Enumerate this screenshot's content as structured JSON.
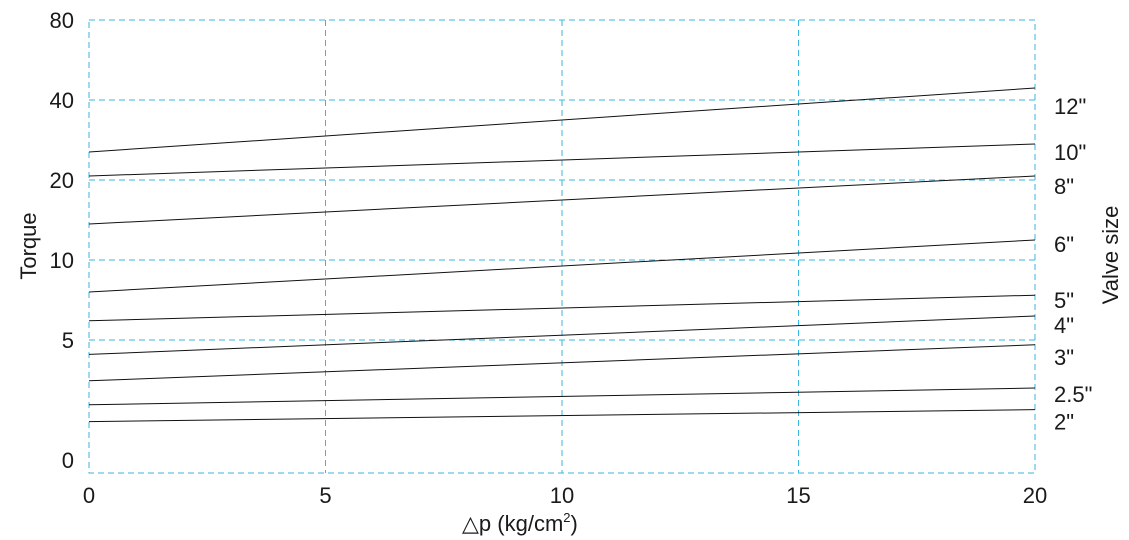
{
  "chart_data": {
    "type": "line",
    "ylabel": "Torque",
    "xlabel_prefix": "△p (kg/cm",
    "xlabel_sup": "2",
    "xlabel_suffix": ")",
    "right_label": "Valve size",
    "xlim": [
      0,
      20
    ],
    "x_ticks": [
      "0",
      "5",
      "10",
      "15",
      "20"
    ],
    "y_tick_labels": [
      "80",
      "40",
      "20",
      "10",
      "5",
      "0"
    ],
    "grid": true,
    "series": [
      {
        "name": "12\"",
        "x": [
          0,
          20
        ],
        "y": [
          27,
          46
        ]
      },
      {
        "name": "10\"",
        "x": [
          0,
          20
        ],
        "y": [
          21,
          29
        ]
      },
      {
        "name": "8\"",
        "x": [
          0,
          20
        ],
        "y": [
          14.5,
          21
        ]
      },
      {
        "name": "6\"",
        "x": [
          0,
          20
        ],
        "y": [
          8,
          12.5
        ]
      },
      {
        "name": "5\"",
        "x": [
          0,
          20
        ],
        "y": [
          6.2,
          7.8
        ]
      },
      {
        "name": "4\"",
        "x": [
          0,
          20
        ],
        "y": [
          4.4,
          6.5
        ]
      },
      {
        "name": "3\"",
        "x": [
          0,
          20
        ],
        "y": [
          3.3,
          4.8
        ]
      },
      {
        "name": "2.5\"",
        "x": [
          0,
          20
        ],
        "y": [
          2.3,
          3
        ]
      },
      {
        "name": "2\"",
        "x": [
          0,
          20
        ],
        "y": [
          1.6,
          2.1
        ]
      }
    ]
  },
  "colors": {
    "grid": "#3bb6e0",
    "line": "#111111",
    "text": "#1a1a1a"
  }
}
